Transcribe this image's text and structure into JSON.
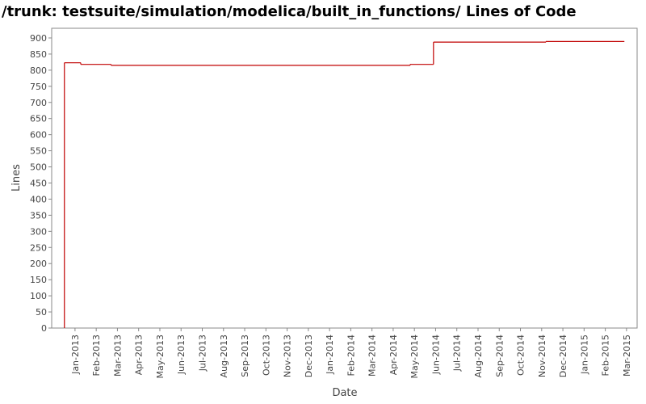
{
  "chart_data": {
    "type": "step-line",
    "title": "/trunk: testsuite/simulation/modelica/built_in_functions/ Lines of Code",
    "x_label": "Date",
    "y_label": "Lines",
    "x": [
      -0.5,
      -0.5,
      0.27,
      1.7,
      15.8,
      16.9,
      22.2,
      25.9
    ],
    "series": [
      {
        "name": "Lines",
        "color": "#c00000",
        "values": [
          0,
          823,
          818,
          815,
          818,
          887,
          889,
          889
        ]
      }
    ],
    "xlim": [
      -1.1,
      26.5
    ],
    "xticks": [
      {
        "value": 0,
        "label": "Jan-2013"
      },
      {
        "value": 1,
        "label": "Feb-2013"
      },
      {
        "value": 2,
        "label": "Mar-2013"
      },
      {
        "value": 3,
        "label": "Apr-2013"
      },
      {
        "value": 4,
        "label": "May-2013"
      },
      {
        "value": 5,
        "label": "Jun-2013"
      },
      {
        "value": 6,
        "label": "Jul-2013"
      },
      {
        "value": 7,
        "label": "Aug-2013"
      },
      {
        "value": 8,
        "label": "Sep-2013"
      },
      {
        "value": 9,
        "label": "Oct-2013"
      },
      {
        "value": 10,
        "label": "Nov-2013"
      },
      {
        "value": 11,
        "label": "Dec-2013"
      },
      {
        "value": 12,
        "label": "Jan-2014"
      },
      {
        "value": 13,
        "label": "Feb-2014"
      },
      {
        "value": 14,
        "label": "Mar-2014"
      },
      {
        "value": 15,
        "label": "Apr-2014"
      },
      {
        "value": 16,
        "label": "May-2014"
      },
      {
        "value": 17,
        "label": "Jun-2014"
      },
      {
        "value": 18,
        "label": "Jul-2014"
      },
      {
        "value": 19,
        "label": "Aug-2014"
      },
      {
        "value": 20,
        "label": "Sep-2014"
      },
      {
        "value": 21,
        "label": "Oct-2014"
      },
      {
        "value": 22,
        "label": "Nov-2014"
      },
      {
        "value": 23,
        "label": "Dec-2014"
      },
      {
        "value": 24,
        "label": "Jan-2015"
      },
      {
        "value": 25,
        "label": "Feb-2015"
      },
      {
        "value": 26,
        "label": "Mar-2015"
      }
    ],
    "ylim": [
      0,
      930
    ],
    "yticks": [
      0,
      50,
      100,
      150,
      200,
      250,
      300,
      350,
      400,
      450,
      500,
      550,
      600,
      650,
      700,
      750,
      800,
      850,
      900
    ],
    "grid": false
  }
}
